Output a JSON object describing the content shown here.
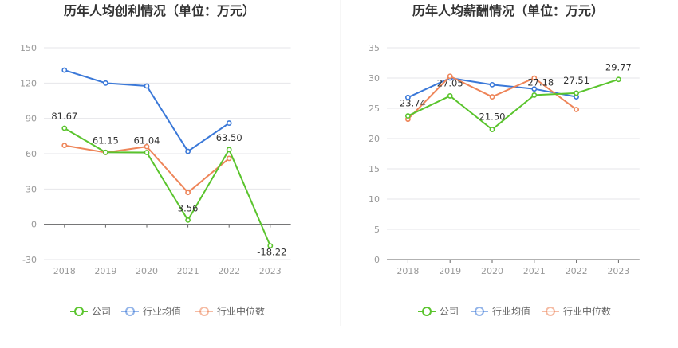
{
  "chart_data": [
    {
      "type": "line",
      "title": "历年人均创利情况（单位：万元）",
      "categories": [
        "2018",
        "2019",
        "2020",
        "2021",
        "2022",
        "2023"
      ],
      "ylim": [
        -30,
        150
      ],
      "yticks": [
        -30,
        0,
        30,
        60,
        90,
        120,
        150
      ],
      "ytick_labels": [
        "-30",
        "0",
        "30",
        "60",
        "90",
        "120",
        "150"
      ],
      "series": [
        {
          "name": "公司",
          "color": "#5ac42d",
          "values": [
            81.67,
            61.15,
            61.04,
            3.56,
            63.5,
            -18.22
          ],
          "labels": [
            "81.67",
            "61.15",
            "61.04",
            "3.56",
            "63.50",
            "-18.22"
          ]
        },
        {
          "name": "行业均值",
          "color": "#3a78d8",
          "values": [
            131,
            120,
            117.5,
            62,
            86,
            null
          ]
        },
        {
          "name": "行业中位数",
          "color": "#ee8559",
          "values": [
            67,
            61,
            66,
            27,
            56,
            null
          ]
        }
      ]
    },
    {
      "type": "line",
      "title": "历年人均薪酬情况（单位：万元）",
      "categories": [
        "2018",
        "2019",
        "2020",
        "2021",
        "2022",
        "2023"
      ],
      "ylim": [
        0,
        35
      ],
      "yticks": [
        0,
        5,
        10,
        15,
        20,
        25,
        30,
        35
      ],
      "ytick_labels": [
        "0",
        "5",
        "10",
        "15",
        "20",
        "25",
        "30",
        "35"
      ],
      "series": [
        {
          "name": "公司",
          "color": "#5ac42d",
          "values": [
            23.74,
            27.05,
            21.5,
            27.18,
            27.51,
            29.77
          ],
          "labels": [
            "23.74",
            "27.05",
            "21.50",
            "27.18",
            "27.51",
            "29.77"
          ]
        },
        {
          "name": "行业均值",
          "color": "#3a78d8",
          "values": [
            26.8,
            30.0,
            28.9,
            28.2,
            26.9,
            null
          ]
        },
        {
          "name": "行业中位数",
          "color": "#ee8559",
          "values": [
            23.2,
            30.3,
            26.9,
            30.0,
            24.8,
            null
          ]
        }
      ]
    }
  ]
}
